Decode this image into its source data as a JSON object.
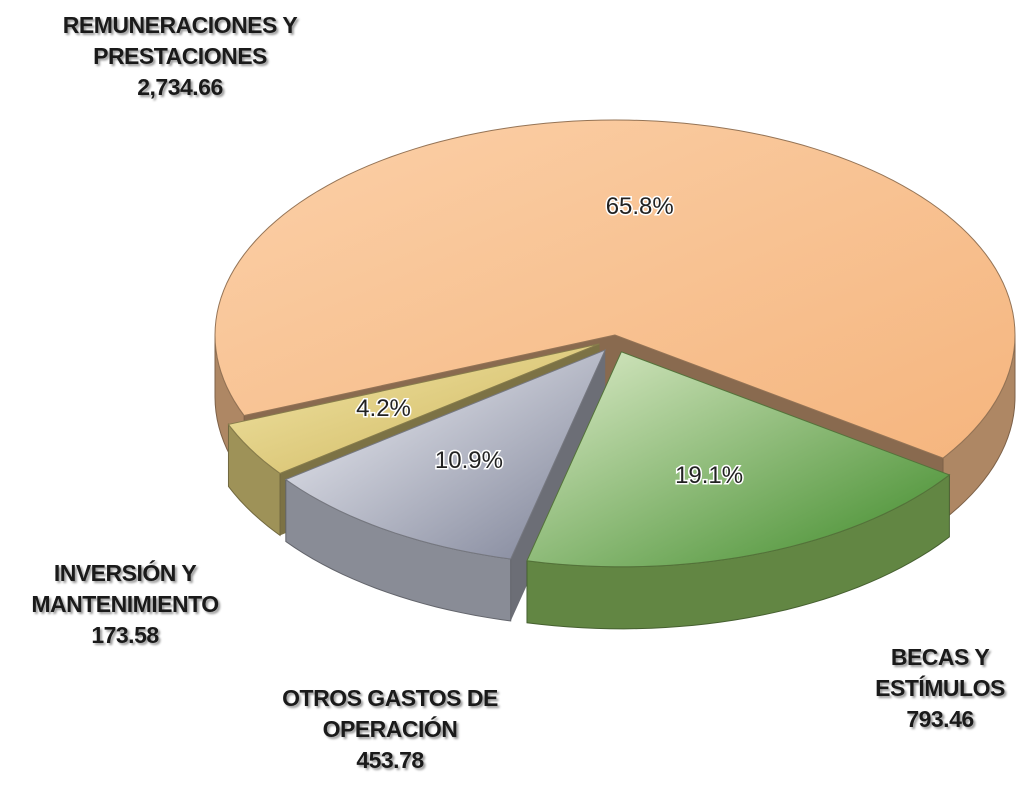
{
  "chart_data": {
    "type": "pie3d",
    "categories": [
      "REMUNERACIONES Y PRESTACIONES",
      "BECAS Y ESTÍMULOS",
      "OTROS GASTOS DE OPERACIÓN",
      "INVERSIÓN Y MANTENIMIENTO"
    ],
    "values": [
      2734.66,
      793.46,
      453.78,
      173.58
    ],
    "value_labels": [
      "2,734.66",
      "793.46",
      "453.78",
      "173.58"
    ],
    "percentages": [
      65.8,
      19.1,
      10.9,
      4.2
    ],
    "percentage_labels": [
      "65.8%",
      "19.1%",
      "10.9%",
      "4.2%"
    ],
    "colors": [
      "#f9c18f",
      "#8cc060",
      "#c4c8d6",
      "#e2d07e"
    ]
  }
}
